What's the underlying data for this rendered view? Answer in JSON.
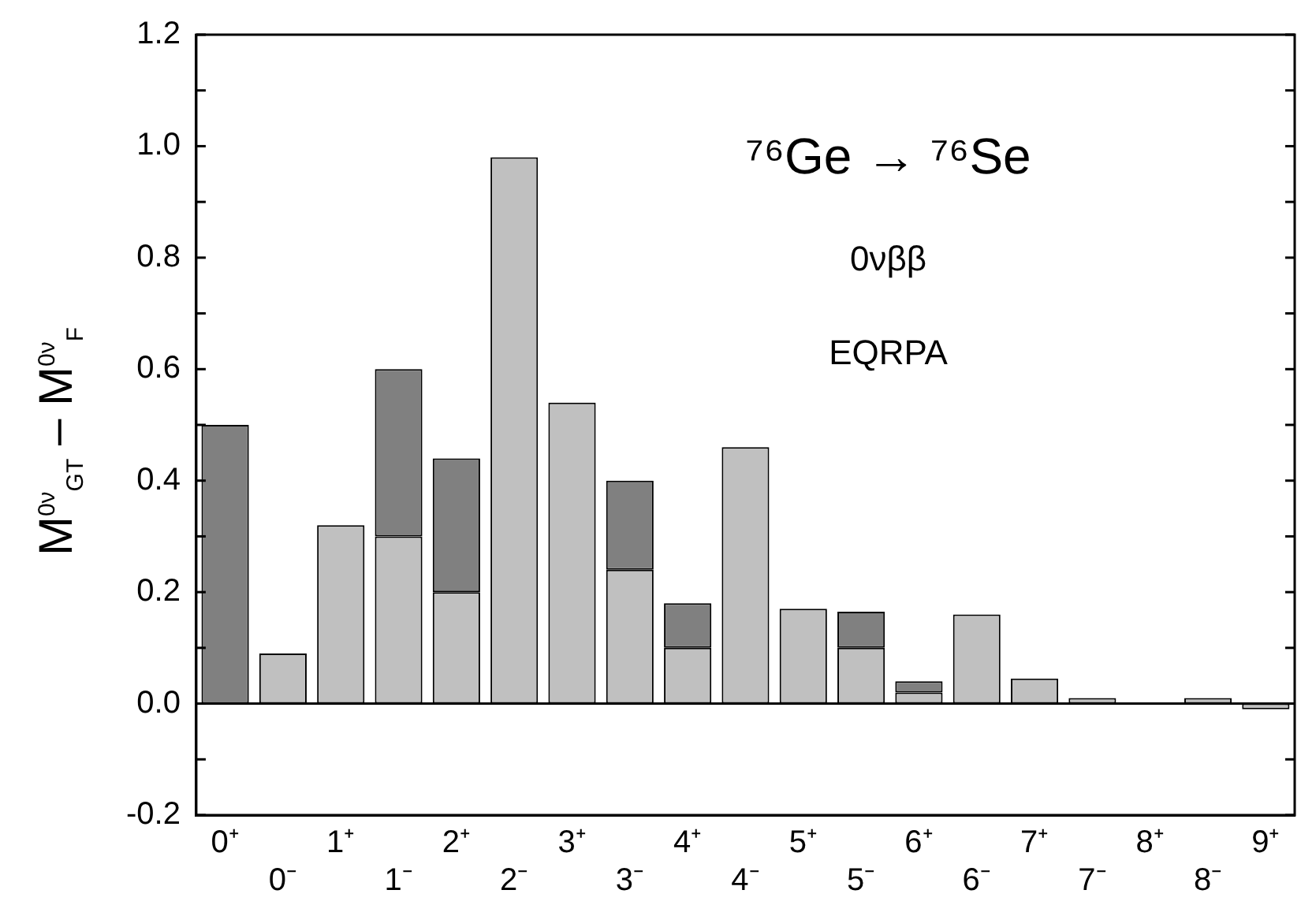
{
  "chart_data": {
    "type": "bar",
    "stacked": true,
    "ylabel": "M$^{0ν}$$_{GT}$ – M$^{0ν}$$_{F}$",
    "annotations": [
      "⁷⁶Ge → ⁷⁶Se",
      "0νββ",
      "EQRPA"
    ],
    "categories": [
      "0⁺",
      "0⁻",
      "1⁺",
      "1⁻",
      "2⁺",
      "2⁻",
      "3⁺",
      "3⁻",
      "4⁺",
      "4⁻",
      "5⁺",
      "5⁻",
      "6⁺",
      "6⁻",
      "7⁺",
      "7⁻",
      "8⁺",
      "8⁻",
      "9⁺"
    ],
    "series": [
      {
        "color": "#c0c0c0",
        "values": [
          null,
          0.09,
          0.32,
          0.3,
          0.2,
          0.98,
          0.54,
          0.24,
          0.1,
          0.46,
          0.17,
          0.1,
          0.02,
          0.16,
          0.045,
          0.01,
          null,
          0.01,
          -0.01
        ]
      },
      {
        "color": "#808080",
        "values": [
          0.5,
          null,
          null,
          0.3,
          0.24,
          null,
          null,
          0.16,
          0.08,
          null,
          null,
          0.065,
          0.02,
          null,
          null,
          null,
          null,
          null,
          null
        ]
      }
    ],
    "ref_lines": [
      {
        "axis": "y",
        "value": 0,
        "color": "#000000"
      }
    ],
    "ylim": [
      -0.2,
      1.2
    ],
    "yticks": [
      {
        "value": -0.2,
        "label": "-0.2"
      },
      {
        "value": -0.1,
        "label": null
      },
      {
        "value": 0,
        "label": "0.0"
      },
      {
        "value": 0.1,
        "label": null
      },
      {
        "value": 0.2,
        "label": "0.2"
      },
      {
        "value": 0.3,
        "label": null
      },
      {
        "value": 0.4,
        "label": "0.4"
      },
      {
        "value": 0.5,
        "label": null
      },
      {
        "value": 0.6,
        "label": "0.6"
      },
      {
        "value": 0.7,
        "label": null
      },
      {
        "value": 0.8,
        "label": "0.8"
      },
      {
        "value": 0.9,
        "label": null
      },
      {
        "value": 1,
        "label": "1.0"
      },
      {
        "value": 1.1,
        "label": null
      },
      {
        "value": 1.2,
        "label": "1.2"
      }
    ],
    "grid": false,
    "legend": false
  }
}
